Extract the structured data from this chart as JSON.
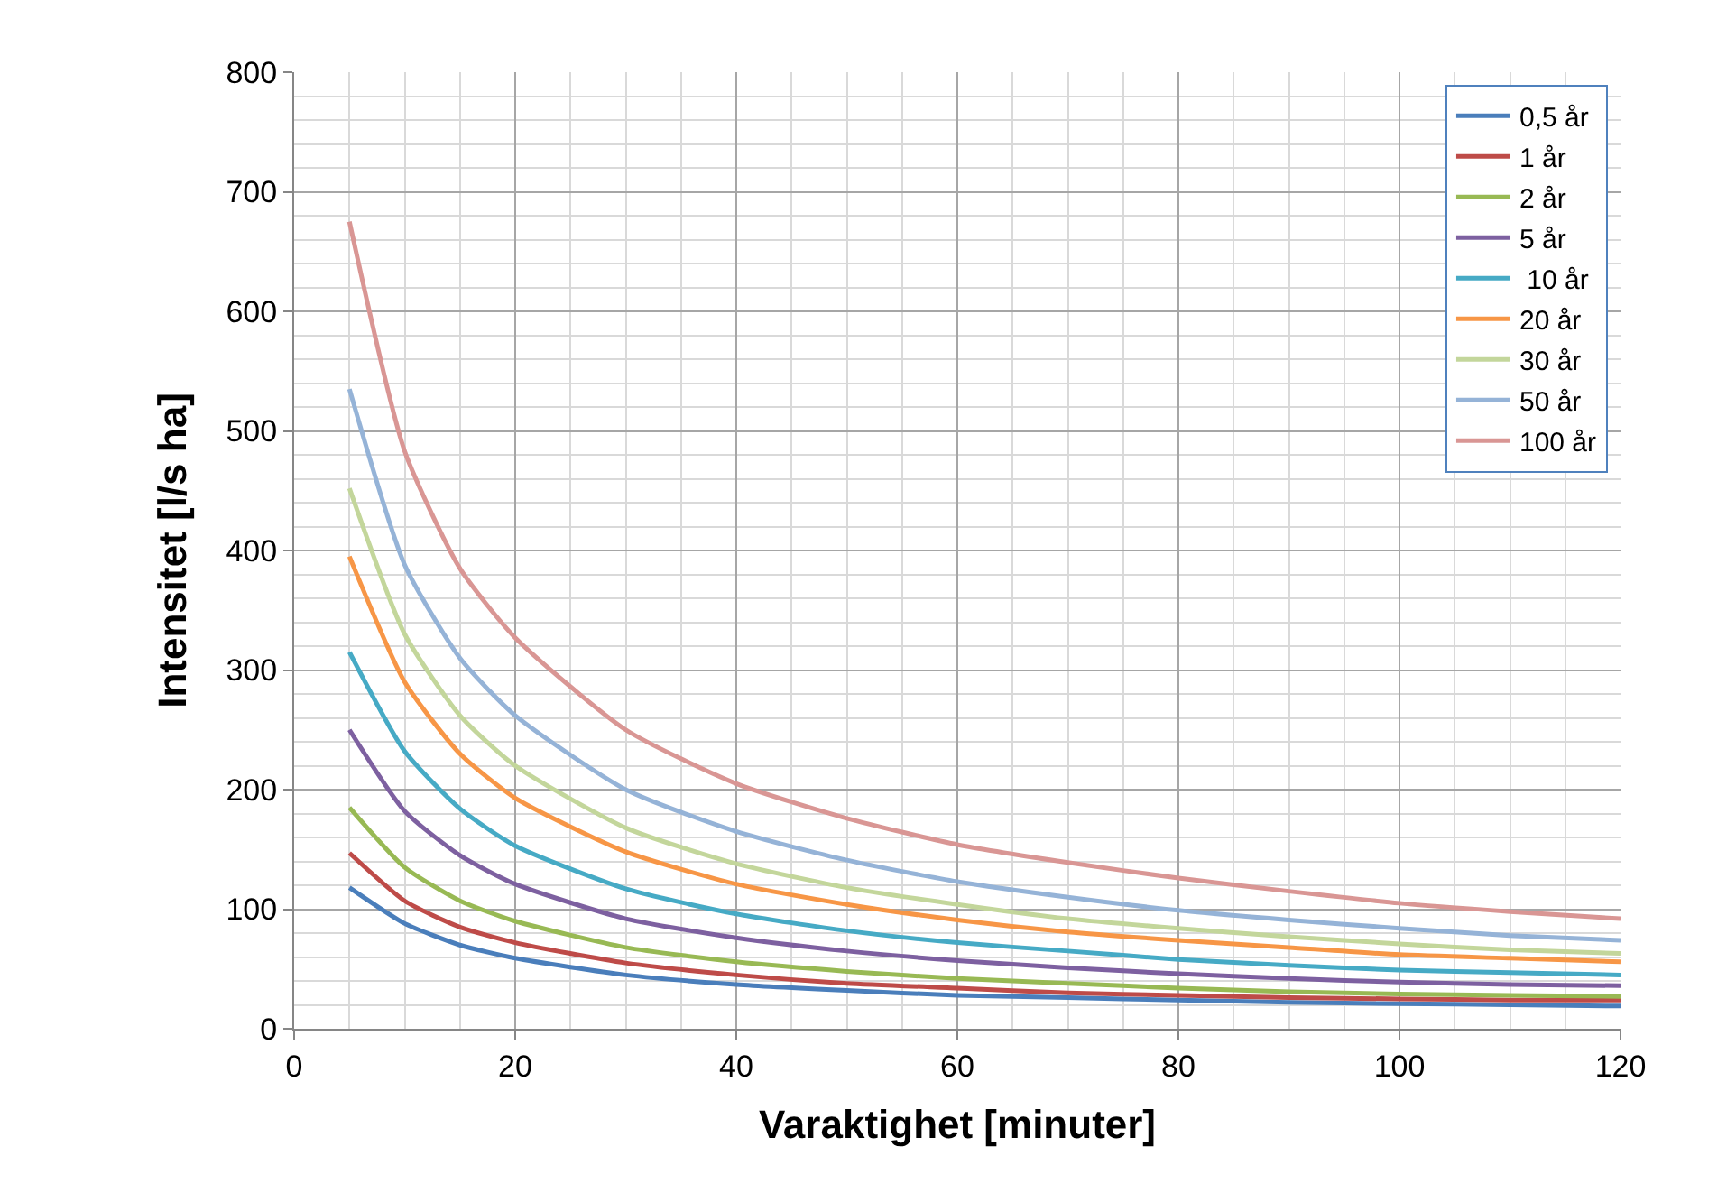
{
  "chart_data": {
    "type": "line",
    "xlabel": "Varaktighet [minuter]",
    "ylabel": "Intensitet [l/s ha]",
    "x": [
      5,
      10,
      15,
      20,
      30,
      40,
      50,
      60,
      70,
      80,
      90,
      100,
      110,
      120
    ],
    "xlim": [
      0,
      120
    ],
    "xticks": [
      0,
      20,
      40,
      60,
      80,
      100,
      120
    ],
    "ylim": [
      0,
      800
    ],
    "yticks": [
      0,
      100,
      200,
      300,
      400,
      500,
      600,
      700,
      800
    ],
    "grid": true,
    "legend": "top right",
    "marker": "none",
    "line_style": "solid",
    "series": [
      {
        "name": "0,5 år",
        "color": "#4a7ebb",
        "values": [
          118,
          88,
          70,
          59,
          45,
          37,
          32,
          28,
          26,
          24,
          22,
          21,
          20,
          19
        ]
      },
      {
        "name": "1 år",
        "color": "#be4b48",
        "values": [
          147,
          107,
          85,
          72,
          55,
          45,
          38,
          34,
          30,
          28,
          26,
          25,
          24,
          24
        ]
      },
      {
        "name": "2 år",
        "color": "#98b954",
        "values": [
          185,
          135,
          107,
          90,
          68,
          56,
          48,
          42,
          38,
          34,
          31,
          29,
          28,
          27
        ]
      },
      {
        "name": "5 år",
        "color": "#7d60a0",
        "values": [
          250,
          182,
          145,
          121,
          92,
          76,
          65,
          57,
          51,
          46,
          42,
          39,
          37,
          36
        ]
      },
      {
        "name": " 10 år",
        "color": "#46aac5",
        "values": [
          315,
          232,
          184,
          153,
          117,
          96,
          82,
          72,
          65,
          58,
          53,
          49,
          47,
          45
        ]
      },
      {
        "name": "20 år",
        "color": "#f79646",
        "values": [
          395,
          290,
          230,
          193,
          148,
          121,
          104,
          91,
          81,
          74,
          68,
          62,
          59,
          56
        ]
      },
      {
        "name": "30 år",
        "color": "#c3d69b",
        "values": [
          452,
          330,
          262,
          220,
          168,
          138,
          118,
          104,
          92,
          84,
          77,
          71,
          66,
          63
        ]
      },
      {
        "name": "50 år",
        "color": "#95b3d7",
        "values": [
          535,
          388,
          310,
          262,
          200,
          165,
          141,
          123,
          110,
          99,
          91,
          84,
          78,
          74
        ]
      },
      {
        "name": "100 år",
        "color": "#d99694",
        "values": [
          675,
          483,
          385,
          327,
          250,
          205,
          176,
          154,
          139,
          126,
          115,
          105,
          98,
          92
        ]
      }
    ]
  }
}
